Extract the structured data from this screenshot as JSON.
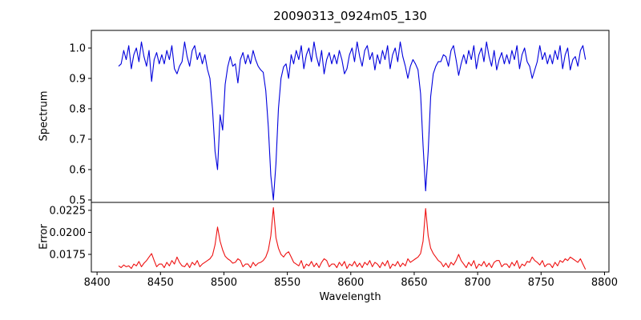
{
  "figure": {
    "title": "20090313_0924m05_130",
    "background": "#ffffff",
    "frame_color": "#000000"
  },
  "x_axis": {
    "label": "Wavelength",
    "xlim": [
      8395.5,
      8803.5
    ],
    "ticks": [
      8400,
      8450,
      8500,
      8550,
      8600,
      8650,
      8700,
      8750,
      8800
    ],
    "tick_labels": [
      "8400",
      "8450",
      "8500",
      "8550",
      "8600",
      "8650",
      "8700",
      "8750",
      "8800"
    ]
  },
  "chart_data": [
    {
      "type": "line",
      "name": "spectrum",
      "series_color": "#0000dd",
      "ylabel": "Spectrum",
      "ylim": [
        0.492,
        1.058
      ],
      "yticks": [
        1.0,
        0.9,
        0.8,
        0.7,
        0.6,
        0.5
      ],
      "ytick_labels": [
        "1.0",
        "0.9",
        "0.8",
        "0.7",
        "0.6",
        "0.5"
      ],
      "x_start": 8417,
      "x_step": 2,
      "y": [
        0.94,
        0.948,
        0.992,
        0.962,
        1.008,
        0.932,
        0.978,
        1.0,
        0.955,
        1.02,
        0.972,
        0.94,
        0.992,
        0.89,
        0.962,
        0.985,
        0.948,
        0.978,
        0.948,
        0.992,
        0.962,
        1.008,
        0.932,
        0.915,
        0.94,
        0.955,
        1.02,
        0.972,
        0.94,
        0.992,
        1.008,
        0.962,
        0.985,
        0.948,
        0.978,
        0.93,
        0.9,
        0.8,
        0.66,
        0.6,
        0.78,
        0.73,
        0.88,
        0.938,
        0.972,
        0.94,
        0.948,
        0.885,
        0.962,
        0.985,
        0.948,
        0.978,
        0.948,
        0.992,
        0.962,
        0.94,
        0.928,
        0.92,
        0.86,
        0.74,
        0.58,
        0.5,
        0.62,
        0.8,
        0.9,
        0.938,
        0.948,
        0.9,
        0.978,
        0.948,
        0.992,
        0.962,
        1.008,
        0.932,
        0.978,
        1.0,
        0.955,
        1.02,
        0.972,
        0.94,
        0.992,
        0.915,
        0.962,
        0.985,
        0.948,
        0.978,
        0.948,
        0.992,
        0.962,
        0.915,
        0.932,
        0.978,
        1.0,
        0.955,
        1.02,
        0.972,
        0.94,
        0.992,
        1.008,
        0.962,
        0.985,
        0.928,
        0.978,
        0.948,
        0.992,
        0.962,
        1.008,
        0.932,
        0.978,
        1.0,
        0.955,
        1.02,
        0.972,
        0.94,
        0.9,
        0.94,
        0.962,
        0.948,
        0.928,
        0.85,
        0.68,
        0.53,
        0.66,
        0.84,
        0.915,
        0.94,
        0.955,
        0.955,
        0.978,
        0.972,
        0.94,
        0.992,
        1.008,
        0.962,
        0.91,
        0.948,
        0.978,
        0.948,
        0.992,
        0.962,
        1.008,
        0.932,
        0.978,
        1.0,
        0.955,
        1.02,
        0.972,
        0.94,
        0.992,
        0.928,
        0.962,
        0.985,
        0.948,
        0.978,
        0.948,
        0.992,
        0.962,
        1.008,
        0.932,
        0.978,
        1.0,
        0.955,
        0.94,
        0.9,
        0.928,
        0.955,
        1.008,
        0.962,
        0.985,
        0.948,
        0.978,
        0.948,
        0.992,
        0.962,
        1.008,
        0.932,
        0.978,
        1.0,
        0.928,
        0.962,
        0.972,
        0.94,
        0.992,
        1.008,
        0.962
      ]
    },
    {
      "type": "line",
      "name": "error",
      "series_color": "#ee1111",
      "ylabel": "Error",
      "ylim": [
        0.0155,
        0.0234
      ],
      "yticks": [
        0.0225,
        0.02,
        0.0175
      ],
      "ytick_labels": [
        "0.0225",
        "0.0200",
        "0.0175"
      ],
      "x_start": 8417,
      "x_step": 2,
      "y": [
        0.0162,
        0.016,
        0.0163,
        0.0161,
        0.0162,
        0.0159,
        0.0164,
        0.0162,
        0.0167,
        0.0161,
        0.0165,
        0.0168,
        0.0172,
        0.0176,
        0.0168,
        0.0161,
        0.0164,
        0.0164,
        0.016,
        0.0166,
        0.0162,
        0.0168,
        0.0164,
        0.0172,
        0.0166,
        0.0162,
        0.0161,
        0.0165,
        0.016,
        0.0166,
        0.0163,
        0.0168,
        0.0161,
        0.0164,
        0.0166,
        0.0168,
        0.017,
        0.0174,
        0.0186,
        0.0206,
        0.019,
        0.018,
        0.0173,
        0.017,
        0.0168,
        0.0165,
        0.0166,
        0.017,
        0.0168,
        0.0161,
        0.0164,
        0.0164,
        0.016,
        0.0166,
        0.0162,
        0.0165,
        0.0166,
        0.0168,
        0.0172,
        0.018,
        0.0196,
        0.0228,
        0.0194,
        0.0182,
        0.0175,
        0.0172,
        0.0176,
        0.0178,
        0.0172,
        0.0166,
        0.0164,
        0.0162,
        0.0168,
        0.0159,
        0.0164,
        0.0162,
        0.0167,
        0.0161,
        0.0165,
        0.016,
        0.0166,
        0.017,
        0.0168,
        0.0161,
        0.0164,
        0.0164,
        0.016,
        0.0166,
        0.0162,
        0.0167,
        0.0159,
        0.0164,
        0.0162,
        0.0167,
        0.0161,
        0.0165,
        0.016,
        0.0166,
        0.0163,
        0.0168,
        0.0161,
        0.0166,
        0.0164,
        0.016,
        0.0166,
        0.0162,
        0.0168,
        0.0159,
        0.0164,
        0.0162,
        0.0167,
        0.0161,
        0.0165,
        0.0162,
        0.017,
        0.0166,
        0.0168,
        0.017,
        0.0172,
        0.0176,
        0.019,
        0.0227,
        0.0196,
        0.0182,
        0.0176,
        0.0172,
        0.0168,
        0.0166,
        0.0161,
        0.0165,
        0.016,
        0.0166,
        0.0163,
        0.0168,
        0.0175,
        0.0168,
        0.0164,
        0.016,
        0.0166,
        0.0162,
        0.0168,
        0.0159,
        0.0164,
        0.0162,
        0.0167,
        0.0161,
        0.0165,
        0.016,
        0.0166,
        0.0168,
        0.0168,
        0.0161,
        0.0164,
        0.0164,
        0.016,
        0.0166,
        0.0162,
        0.0168,
        0.0159,
        0.0164,
        0.0162,
        0.0167,
        0.0166,
        0.0172,
        0.0168,
        0.0166,
        0.0163,
        0.0168,
        0.0161,
        0.0164,
        0.0164,
        0.016,
        0.0166,
        0.0162,
        0.0168,
        0.0166,
        0.017,
        0.0168,
        0.0172,
        0.017,
        0.0168,
        0.0166,
        0.017,
        0.0164,
        0.0158
      ]
    }
  ]
}
